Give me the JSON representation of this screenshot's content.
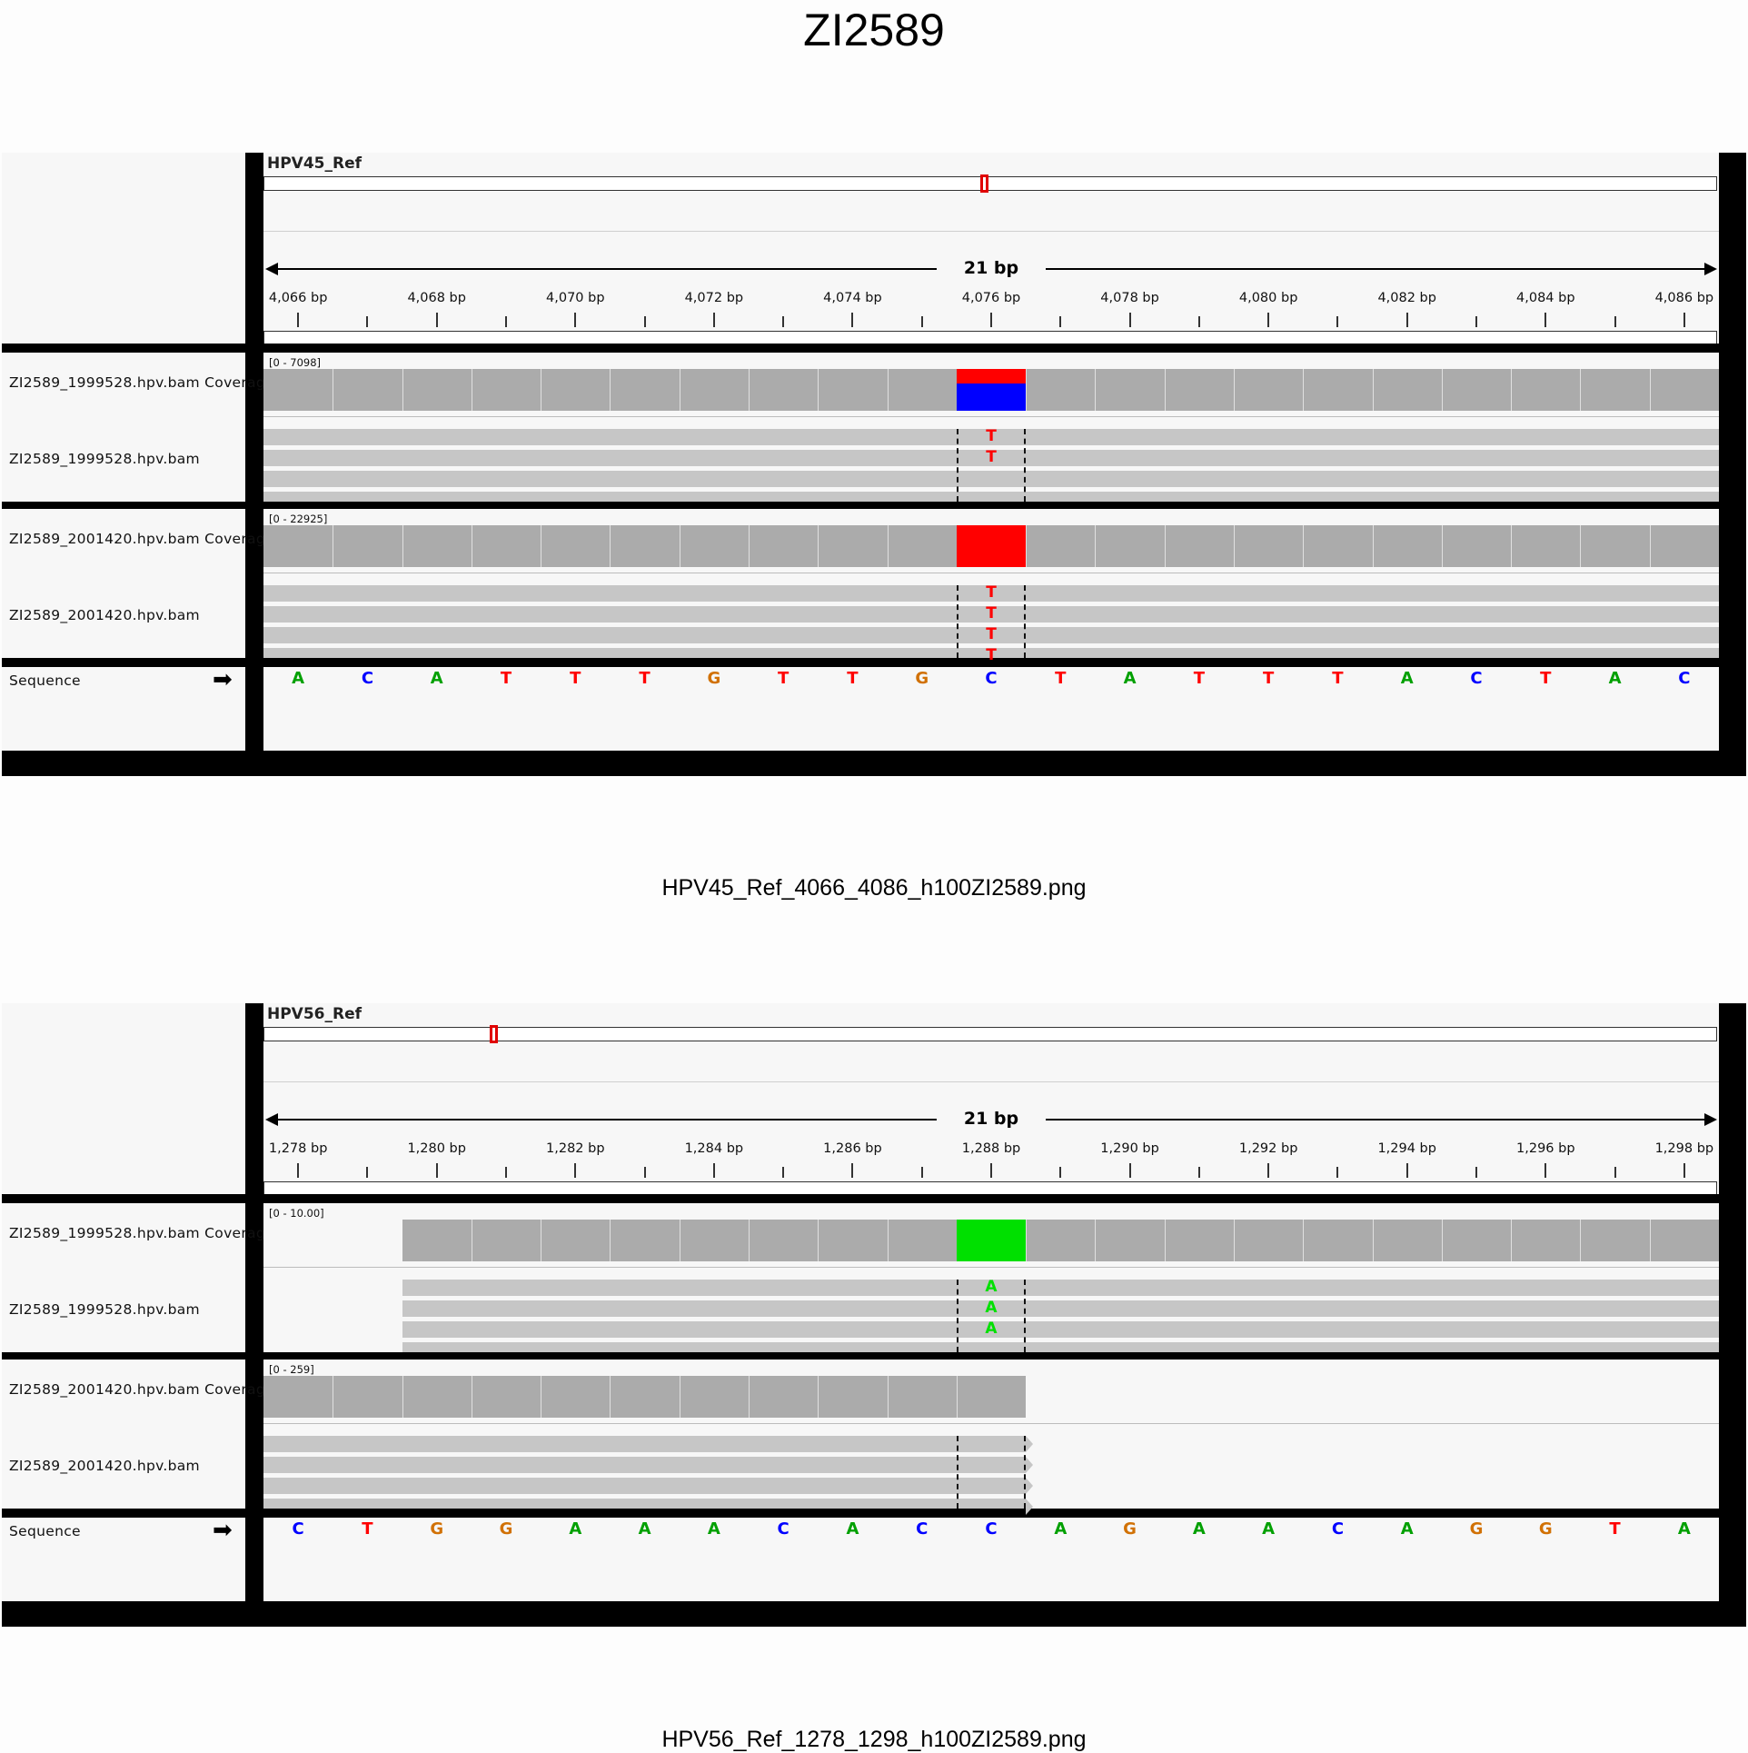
{
  "title": "ZI2589",
  "colors": {
    "A": "#00a000",
    "C": "#0000ff",
    "G": "#d17105",
    "T": "#ff0000",
    "A_mismatch": "#00e000",
    "T_mismatch": "#ff0000",
    "coverage": "#ababab"
  },
  "panels": [
    {
      "genome": "HPV45_Ref",
      "span": "21 bp",
      "ideogram_fraction": 0.4947,
      "start": 4066,
      "end": 4086,
      "ticks": [
        "4,066 bp",
        "4,068 bp",
        "4,070 bp",
        "4,072 bp",
        "4,074 bp",
        "4,076 bp",
        "4,078 bp",
        "4,080 bp",
        "4,082 bp",
        "4,084 bp",
        "4,086 bp"
      ],
      "caption": "HPV45_Ref_4066_4086_h100ZI2589.png",
      "sequence_label": "Sequence",
      "sequence_arrow": "➡",
      "sequence": [
        "A",
        "C",
        "A",
        "T",
        "T",
        "T",
        "G",
        "T",
        "T",
        "G",
        "C",
        "T",
        "A",
        "T",
        "T",
        "T",
        "A",
        "C",
        "T",
        "A",
        "C"
      ],
      "samples": [
        {
          "coverage_label": "ZI2589_1999528.hpv.bam Coverage",
          "reads_label": "ZI2589_1999528.hpv.bam",
          "scale": "[0 - 7098]",
          "coverage_range": [
            0,
            21
          ],
          "variant_index": 10,
          "variant_alleles": [
            {
              "base": "T",
              "fraction": 0.34
            },
            {
              "base": "C",
              "fraction": 0.66
            }
          ],
          "reads_range": [
            0,
            21
          ],
          "read_rows": 4,
          "mismatches": [
            "T",
            "T"
          ]
        },
        {
          "coverage_label": "ZI2589_2001420.hpv.bam Coverage",
          "reads_label": "ZI2589_2001420.hpv.bam",
          "scale": "[0 - 22925]",
          "coverage_range": [
            0,
            21
          ],
          "variant_index": 10,
          "variant_alleles": [
            {
              "base": "T",
              "fraction": 1.0
            }
          ],
          "reads_range": [
            0,
            21
          ],
          "read_rows": 4,
          "mismatches": [
            "T",
            "T",
            "T",
            "T"
          ]
        }
      ]
    },
    {
      "genome": "HPV56_Ref",
      "span": "21 bp",
      "ideogram_fraction": 0.1572,
      "start": 1278,
      "end": 1298,
      "ticks": [
        "1,278 bp",
        "1,280 bp",
        "1,282 bp",
        "1,284 bp",
        "1,286 bp",
        "1,288 bp",
        "1,290 bp",
        "1,292 bp",
        "1,294 bp",
        "1,296 bp",
        "1,298 bp"
      ],
      "caption": "HPV56_Ref_1278_1298_h100ZI2589.png",
      "sequence_label": "Sequence",
      "sequence_arrow": "➡",
      "sequence": [
        "C",
        "T",
        "G",
        "G",
        "A",
        "A",
        "A",
        "C",
        "A",
        "C",
        "C",
        "A",
        "G",
        "A",
        "A",
        "C",
        "A",
        "G",
        "G",
        "T",
        "A"
      ],
      "samples": [
        {
          "coverage_label": "ZI2589_1999528.hpv.bam Coverage",
          "reads_label": "ZI2589_1999528.hpv.bam",
          "scale": "[0 - 10.00]",
          "coverage_range": [
            2,
            21
          ],
          "variant_index": 10,
          "variant_alleles": [
            {
              "base": "A",
              "fraction": 1.0
            }
          ],
          "reads_range": [
            2,
            21
          ],
          "read_rows": 4,
          "mismatches": [
            "A",
            "A",
            "A"
          ]
        },
        {
          "coverage_label": "ZI2589_2001420.hpv.bam Coverage",
          "reads_label": "ZI2589_2001420.hpv.bam",
          "scale": "[0 - 259]",
          "coverage_range": [
            0,
            11
          ],
          "variant_index": -1,
          "variant_alleles": [],
          "reads_range": [
            0,
            11
          ],
          "read_rows": 4,
          "mismatches": []
        }
      ]
    }
  ]
}
